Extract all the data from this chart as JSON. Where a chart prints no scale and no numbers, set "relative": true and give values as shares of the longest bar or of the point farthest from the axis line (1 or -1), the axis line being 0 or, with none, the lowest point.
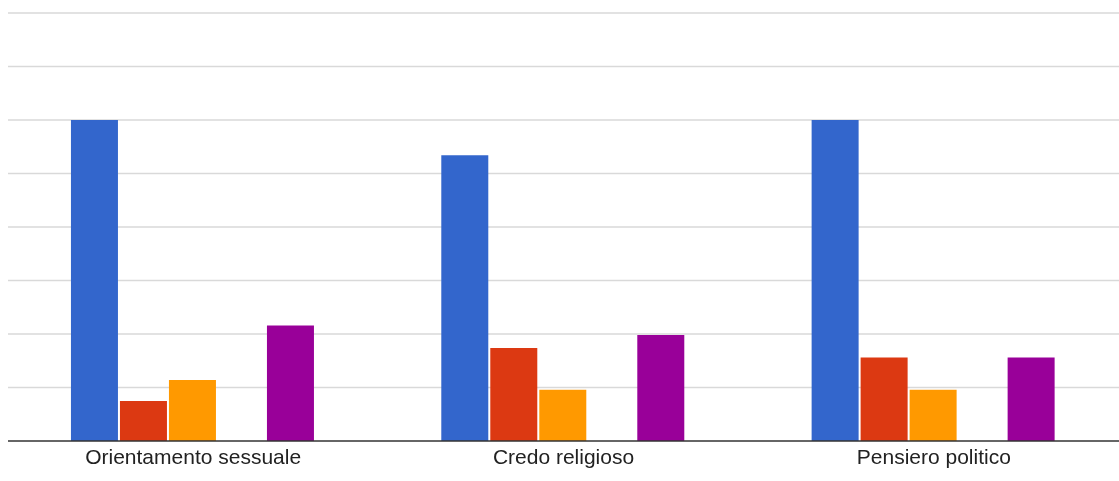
{
  "chart_data": {
    "type": "bar",
    "relative": true,
    "grid": true,
    "legend": false,
    "categories": [
      "Orientamento sessuale",
      "Credo religioso",
      "Pensiero politico"
    ],
    "series": [
      {
        "color": "#3366cc",
        "values": [
          1,
          0.89,
          1
        ]
      },
      {
        "color": "#dc3912",
        "values": [
          0.125,
          0.29,
          0.26
        ]
      },
      {
        "color": "#ff9900",
        "values": [
          0.19,
          0.16,
          0.16
        ]
      },
      {
        "color": "#109618",
        "values": [
          0,
          0,
          0
        ]
      },
      {
        "color": "#990099",
        "values": [
          0.36,
          0.33,
          0.26
        ]
      }
    ]
  }
}
